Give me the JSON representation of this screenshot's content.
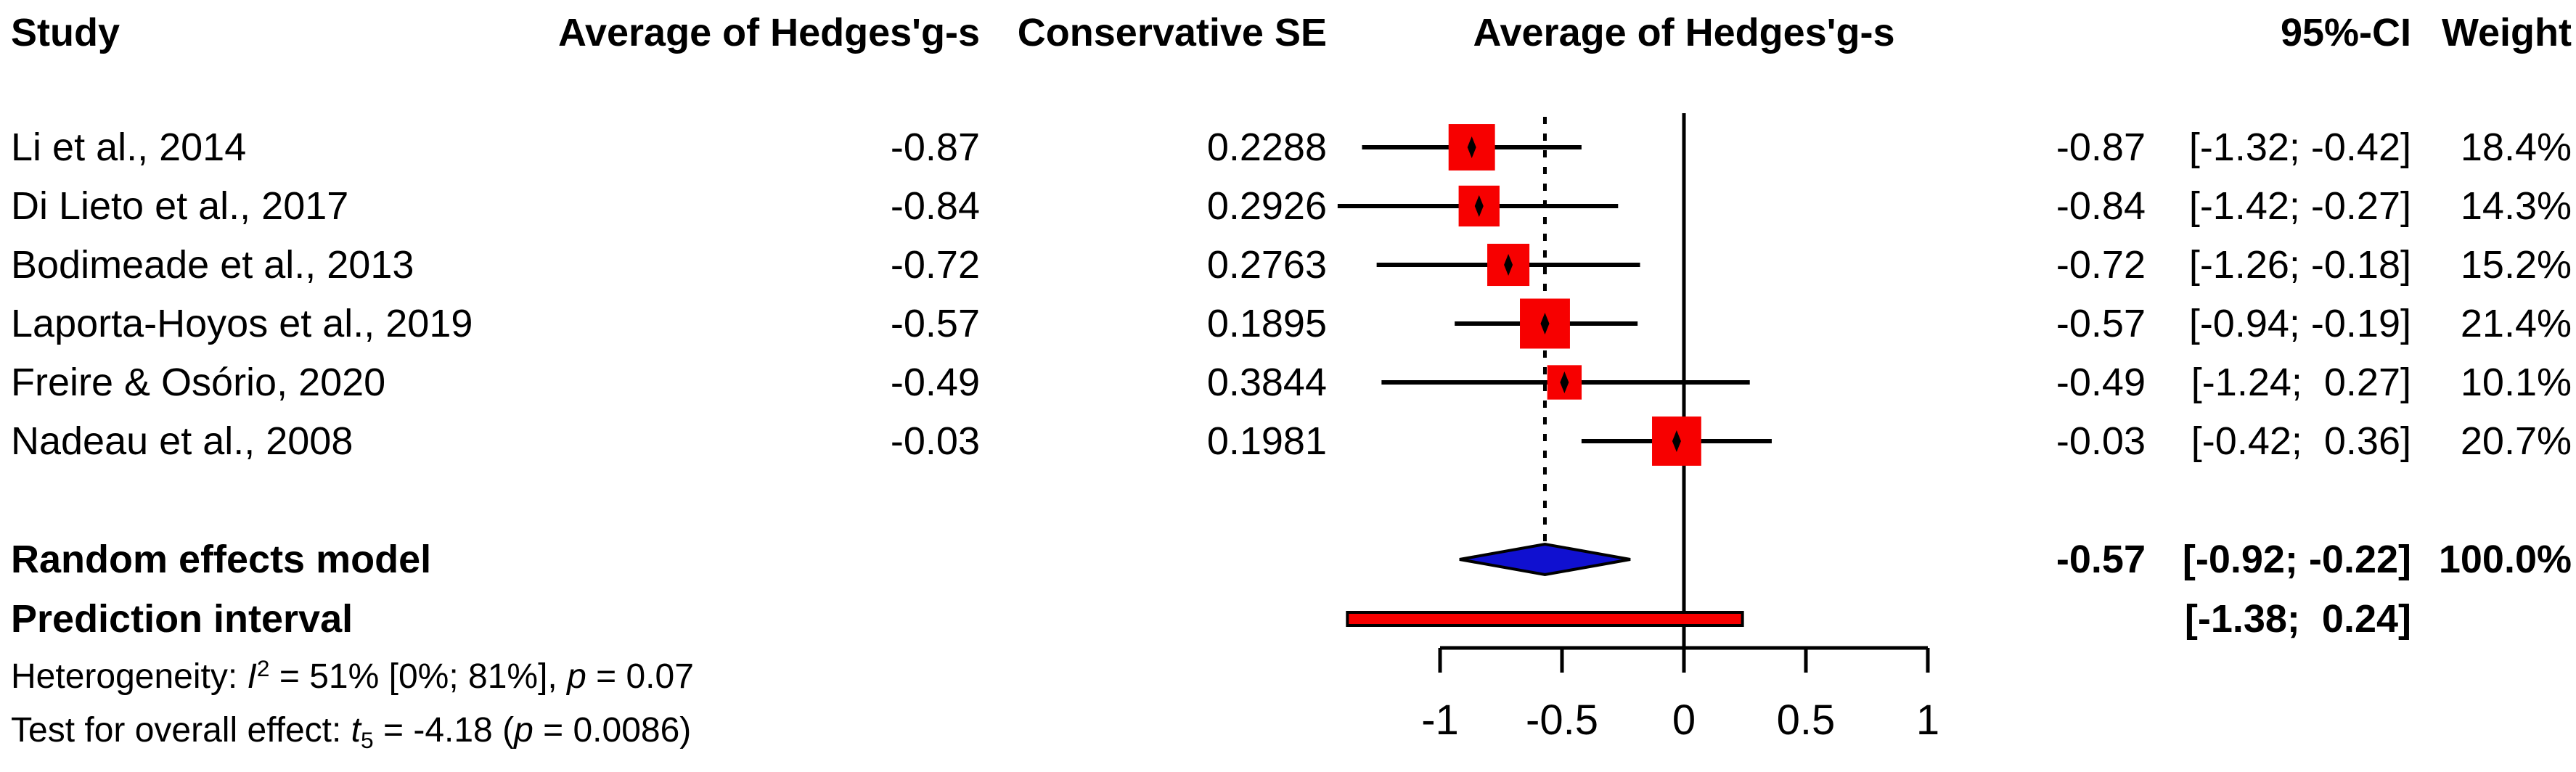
{
  "header": {
    "study": "Study",
    "effect": "Average of Hedges'g-s",
    "se": "Conservative SE",
    "plot": "Average of Hedges'g-s",
    "ci": "95%-CI",
    "weight": "Weight"
  },
  "table": {
    "rows": [
      {
        "name": "Li et al., 2014",
        "effect": "-0.87",
        "se": "0.2288",
        "effect2": "-0.87",
        "ci": "[-1.32; -0.42]",
        "weight": "18.4%"
      },
      {
        "name": "Di Lieto et al., 2017",
        "effect": "-0.84",
        "se": "0.2926",
        "effect2": "-0.84",
        "ci": "[-1.42; -0.27]",
        "weight": "14.3%"
      },
      {
        "name": "Bodimeade et al., 2013",
        "effect": "-0.72",
        "se": "0.2763",
        "effect2": "-0.72",
        "ci": "[-1.26; -0.18]",
        "weight": "15.2%"
      },
      {
        "name": "Laporta-Hoyos et al., 2019",
        "effect": "-0.57",
        "se": "0.1895",
        "effect2": "-0.57",
        "ci": "[-0.94; -0.19]",
        "weight": "21.4%"
      },
      {
        "name": "Freire & Osório, 2020",
        "effect": "-0.49",
        "se": "0.3844",
        "effect2": "-0.49",
        "ci": "[-1.24;  0.27]",
        "weight": "10.1%"
      },
      {
        "name": "Nadeau et al., 2008",
        "effect": "-0.03",
        "se": "0.1981",
        "effect2": "-0.03",
        "ci": "[-0.42;  0.36]",
        "weight": "20.7%"
      }
    ]
  },
  "summary": {
    "random_label": "Random effects model",
    "random_effect": "-0.57",
    "random_ci": "[-0.92; -0.22]",
    "random_weight": "100.0%",
    "prediction_label": "Prediction interval",
    "prediction_ci": "[-1.38;  0.24]"
  },
  "footnotes": {
    "het_prefix": "Heterogeneity: ",
    "het_stat": "I",
    "het_sup": "2",
    "het_mid": " = 51% [0%; 81%], ",
    "het_p": "p",
    "het_end": " = 0.07",
    "test_prefix": "Test for overall effect: ",
    "test_stat": "t",
    "test_sub": "5",
    "test_mid": " = -4.18 (",
    "test_p": "p",
    "test_end": " = 0.0086)"
  },
  "colors": {
    "square": "#f70000",
    "diamond": "#1010d0",
    "bar_fill": "#f70000",
    "line": "#000000"
  },
  "chart_data": {
    "type": "scatter",
    "subtype": "forest-plot",
    "xlabel": "Average of Hedges'g-s",
    "xlim": [
      -1,
      1
    ],
    "x_ticks": [
      -1,
      -0.5,
      0,
      0.5,
      1
    ],
    "x_tick_labels": [
      "-1",
      "-0.5",
      "0",
      "0.5",
      "1"
    ],
    "reference_line": 0,
    "pooled_line": -0.57,
    "grid": false,
    "studies": [
      {
        "name": "Li et al., 2014",
        "effect": -0.87,
        "se": 0.2288,
        "ci_low": -1.32,
        "ci_high": -0.42,
        "weight": 18.4
      },
      {
        "name": "Di Lieto et al., 2017",
        "effect": -0.84,
        "se": 0.2926,
        "ci_low": -1.42,
        "ci_high": -0.27,
        "weight": 14.3
      },
      {
        "name": "Bodimeade et al., 2013",
        "effect": -0.72,
        "se": 0.2763,
        "ci_low": -1.26,
        "ci_high": -0.18,
        "weight": 15.2
      },
      {
        "name": "Laporta-Hoyos et al., 2019",
        "effect": -0.57,
        "se": 0.1895,
        "ci_low": -0.94,
        "ci_high": -0.19,
        "weight": 21.4
      },
      {
        "name": "Freire & Osório, 2020",
        "effect": -0.49,
        "se": 0.3844,
        "ci_low": -1.24,
        "ci_high": 0.27,
        "weight": 10.1
      },
      {
        "name": "Nadeau et al., 2008",
        "effect": -0.03,
        "se": 0.1981,
        "ci_low": -0.42,
        "ci_high": 0.36,
        "weight": 20.7
      }
    ],
    "pooled": {
      "label": "Random effects model",
      "effect": -0.57,
      "ci_low": -0.92,
      "ci_high": -0.22,
      "weight": 100.0
    },
    "prediction_interval": {
      "label": "Prediction interval",
      "ci_low": -1.38,
      "ci_high": 0.24
    },
    "heterogeneity": {
      "I2": "51%",
      "I2_ci": "[0%; 81%]",
      "p": "0.07"
    },
    "overall_test": {
      "statistic": "t",
      "df": 5,
      "value": -4.18,
      "p": "0.0086"
    }
  }
}
